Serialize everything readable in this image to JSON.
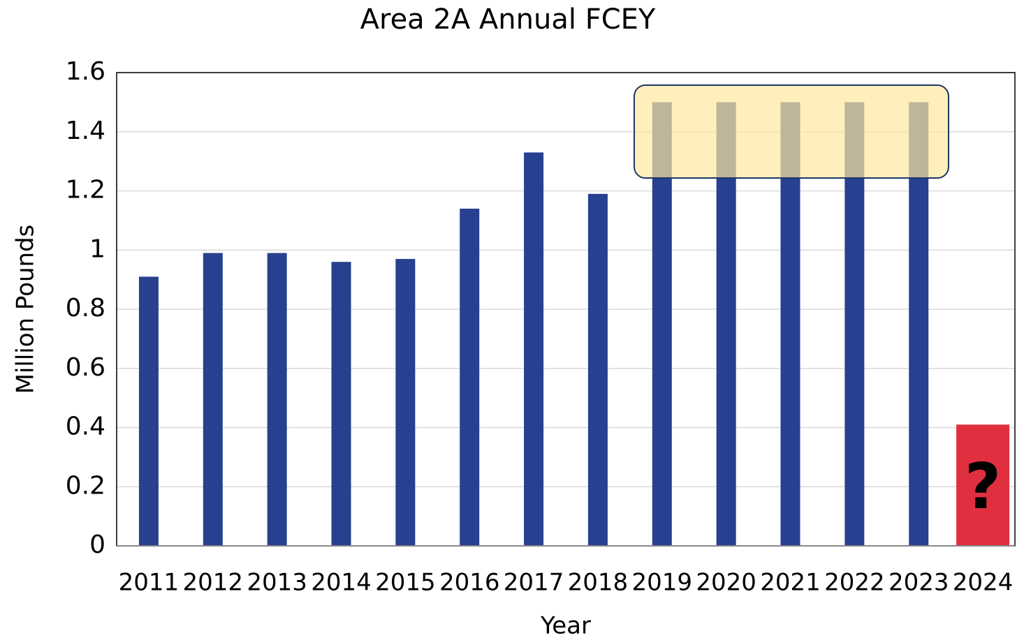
{
  "chart_data": {
    "type": "bar",
    "title": "Area 2A Annual FCEY",
    "x_label": "Year",
    "y_label": "Million Pounds",
    "categories": [
      "2011",
      "2012",
      "2013",
      "2014",
      "2015",
      "2016",
      "2017",
      "2018",
      "2019",
      "2020",
      "2021",
      "2022",
      "2023",
      "2024"
    ],
    "values": [
      0.91,
      0.99,
      0.99,
      0.96,
      0.97,
      1.14,
      1.33,
      1.19,
      1.5,
      1.5,
      1.5,
      1.5,
      1.5,
      0.41
    ],
    "colors": [
      "#27408f",
      "#27408f",
      "#27408f",
      "#27408f",
      "#27408f",
      "#27408f",
      "#27408f",
      "#27408f",
      "#27408f",
      "#27408f",
      "#27408f",
      "#27408f",
      "#27408f",
      "#e0303f"
    ],
    "annotation": "?",
    "ylim": [
      0,
      1.6
    ],
    "yticks": [
      0,
      0.2,
      0.4,
      0.6,
      0.8,
      1,
      1.2,
      1.4,
      1.6
    ],
    "grid": true
  }
}
